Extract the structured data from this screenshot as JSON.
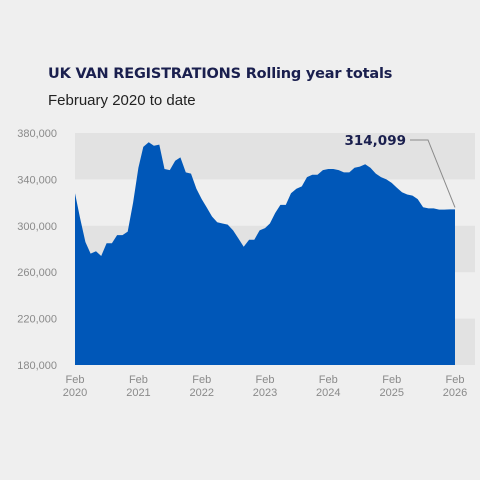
{
  "chart_data": {
    "type": "area",
    "title": "UK VAN REGISTRATIONS Rolling year totals",
    "subtitle": "February 2020 to date",
    "ylim": [
      180000,
      380000
    ],
    "y_ticks": [
      {
        "value": 180000,
        "label": "180,000"
      },
      {
        "value": 220000,
        "label": "220,000"
      },
      {
        "value": 260000,
        "label": "260,000"
      },
      {
        "value": 300000,
        "label": "300,000"
      },
      {
        "value": 340000,
        "label": "340,000"
      },
      {
        "value": 380000,
        "label": "380,000"
      }
    ],
    "x_ticks": [
      {
        "date": "2020-02",
        "label": [
          "Feb",
          "2020"
        ]
      },
      {
        "date": "2021-02",
        "label": [
          "Feb",
          "2021"
        ]
      },
      {
        "date": "2022-02",
        "label": [
          "Feb",
          "2022"
        ]
      },
      {
        "date": "2023-02",
        "label": [
          "Feb",
          "2023"
        ]
      },
      {
        "date": "2024-02",
        "label": [
          "Feb",
          "2024"
        ]
      },
      {
        "date": "2025-02",
        "label": [
          "Feb",
          "2025"
        ]
      },
      {
        "date": "2026-02",
        "label": [
          "Feb",
          "2026"
        ]
      }
    ],
    "grid_bands": true,
    "area_color": "#0057b8",
    "band_color": "#e2e2e2",
    "callout": {
      "date": "2026-02",
      "value": 314099,
      "label": "314,099"
    },
    "series": [
      {
        "x": [
          "2020-02",
          "2020-03",
          "2020-04",
          "2020-05",
          "2020-06",
          "2020-07",
          "2020-08",
          "2020-09",
          "2020-10",
          "2020-11",
          "2020-12",
          "2021-01",
          "2021-02",
          "2021-03",
          "2021-04",
          "2021-05",
          "2021-06",
          "2021-07",
          "2021-08",
          "2021-09",
          "2021-10",
          "2021-11",
          "2021-12",
          "2022-01",
          "2022-02",
          "2022-03",
          "2022-04",
          "2022-05",
          "2022-06",
          "2022-07",
          "2022-08",
          "2022-09",
          "2022-10",
          "2022-11",
          "2022-12",
          "2023-01",
          "2023-02",
          "2023-03",
          "2023-04",
          "2023-05",
          "2023-06",
          "2023-07",
          "2023-08",
          "2023-09",
          "2023-10",
          "2023-11",
          "2023-12",
          "2024-01",
          "2024-02",
          "2024-03",
          "2024-04",
          "2024-05",
          "2024-06",
          "2024-07",
          "2024-08",
          "2024-09",
          "2024-10",
          "2024-11",
          "2024-12",
          "2025-01",
          "2025-02",
          "2025-03",
          "2025-04",
          "2025-05",
          "2025-06",
          "2025-07",
          "2025-08",
          "2025-09",
          "2025-10",
          "2025-11",
          "2025-12",
          "2026-01",
          "2026-02"
        ],
        "values": [
          328000,
          307000,
          286000,
          276000,
          278000,
          274000,
          285000,
          285000,
          292000,
          292000,
          295000,
          320000,
          350000,
          368000,
          372000,
          369000,
          370000,
          349000,
          348000,
          356000,
          359000,
          346000,
          345000,
          332000,
          323000,
          316000,
          308000,
          303000,
          302000,
          301000,
          296000,
          289000,
          282000,
          288000,
          288000,
          296000,
          298000,
          302000,
          311000,
          318000,
          318000,
          328000,
          332000,
          334000,
          342000,
          344000,
          344000,
          348000,
          349000,
          349000,
          348000,
          346000,
          346000,
          350000,
          351000,
          353000,
          350000,
          345000,
          342000,
          340000,
          337000,
          333000,
          329000,
          327000,
          326000,
          323000,
          316000,
          315000,
          315000,
          314000,
          314000,
          314099,
          314099
        ]
      }
    ]
  }
}
